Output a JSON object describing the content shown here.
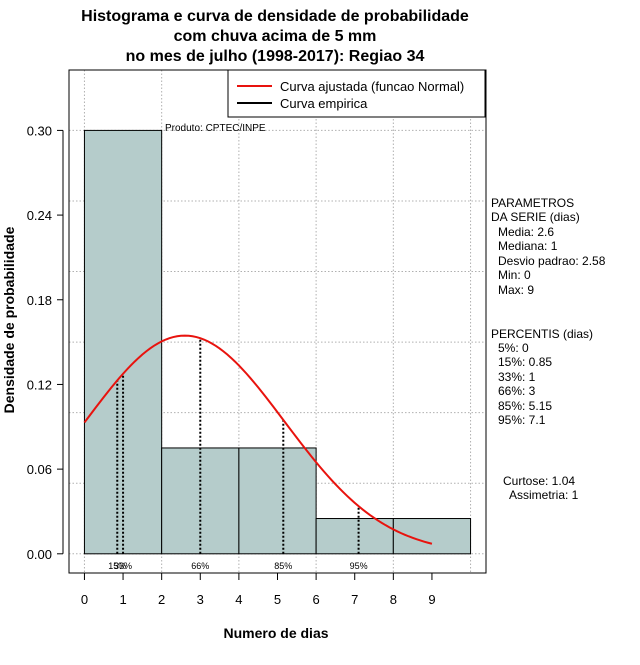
{
  "chart_data": {
    "type": "histogram",
    "title_lines": [
      "Histograma e curva de densidade de probabilidade",
      "com chuva acima de 5 mm",
      "no mes de julho (1998-2017): Regiao 34"
    ],
    "xlabel": "Numero de dias",
    "ylabel": "Densidade de probabilidade",
    "xlim": [
      -0.4,
      10.4
    ],
    "ylim": [
      -0.0136,
      0.3428
    ],
    "x_ticks": [
      0,
      1,
      2,
      3,
      4,
      5,
      6,
      7,
      8,
      9
    ],
    "y_ticks": [
      0.0,
      0.06,
      0.12,
      0.18,
      0.24,
      0.3
    ],
    "y_tick_labels": [
      "0.00",
      "0.06",
      "0.12",
      "0.18",
      "0.24",
      "0.30"
    ],
    "bins": [
      {
        "x0": 0,
        "x1": 2,
        "density": 0.3
      },
      {
        "x0": 2,
        "x1": 4,
        "density": 0.075
      },
      {
        "x0": 4,
        "x1": 6,
        "density": 0.075
      },
      {
        "x0": 6,
        "x1": 8,
        "density": 0.025
      },
      {
        "x0": 8,
        "x1": 10,
        "density": 0.025
      }
    ],
    "fit_curve": {
      "name": "Curva ajustada (funcao Normal)",
      "mean": 2.6,
      "sd": 2.58,
      "x_from": 0,
      "x_to": 9
    },
    "legend": [
      {
        "label": "Curva ajustada (funcao Normal)",
        "color": "#e8130e"
      },
      {
        "label": "Curva empirica",
        "color": "#000000"
      }
    ],
    "percentile_markers": [
      {
        "x": 0.85,
        "label": "15%"
      },
      {
        "x": 1,
        "label": "33%"
      },
      {
        "x": 3,
        "label": "66%"
      },
      {
        "x": 5.15,
        "label": "85%"
      },
      {
        "x": 7.1,
        "label": "95%"
      }
    ],
    "annotation": "Produto: CPTEC/INPE"
  },
  "stats": {
    "header": [
      "PARAMETROS",
      "DA SERIE (dias)"
    ],
    "lines": [
      "Media: 2.6",
      "Mediana: 1",
      "Desvio padrao: 2.58",
      "Min: 0",
      "Max: 9"
    ]
  },
  "percentis": {
    "header": "PERCENTIS (dias)",
    "lines": [
      "5%: 0",
      "15%: 0.85",
      "33%: 1",
      "66%: 3",
      "85%: 5.15",
      "95%: 7.1"
    ]
  },
  "shape": {
    "lines": [
      "Curtose: 1.04",
      "Assimetria: 1"
    ]
  },
  "colors": {
    "bar_fill": "#b5cccb",
    "curve": "#e8130e",
    "grid": "#b0b0b0"
  }
}
